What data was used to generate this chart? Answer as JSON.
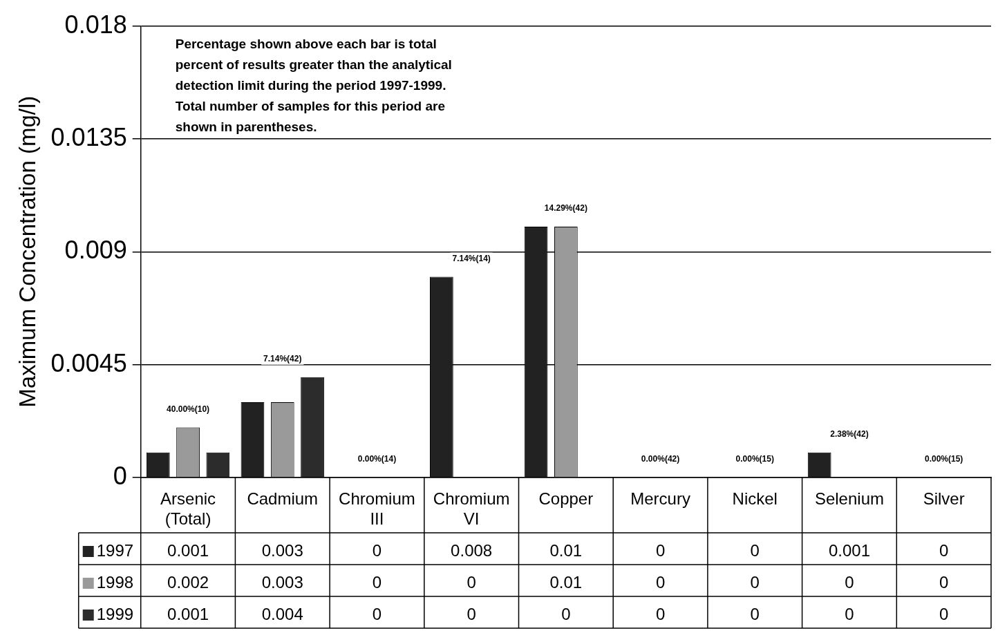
{
  "chart_data": {
    "type": "bar",
    "ylabel": "Maximum Concentration (mg/l)",
    "categories": [
      "Arsenic (Total)",
      "Cadmium",
      "Chromium III",
      "Chromium VI",
      "Copper",
      "Mercury",
      "Nickel",
      "Selenium",
      "Silver"
    ],
    "series": [
      {
        "name": "1997",
        "color": "#222222",
        "values": [
          0.001,
          0.003,
          0,
          0.008,
          0.01,
          0,
          0,
          0.001,
          0
        ]
      },
      {
        "name": "1998",
        "color": "#9a9a9a",
        "values": [
          0.002,
          0.003,
          0,
          0,
          0.01,
          0,
          0,
          0,
          0
        ]
      },
      {
        "name": "1999",
        "color": "#2c2c2c",
        "values": [
          0.001,
          0.004,
          0,
          0,
          0,
          0,
          0,
          0,
          0
        ]
      }
    ],
    "ylim": [
      0,
      0.018
    ],
    "yticks": [
      0,
      0.0045,
      0.009,
      0.0135,
      0.018
    ],
    "grid": "y",
    "legend": "bottom left",
    "data_labels": true,
    "annotations": [
      "Percentage shown above each bar is total percent of results greater than the analytical detection limit during the period 1997-1999. Total number of samples for this period are shown in parentheses.",
      "40.00%(10)",
      "7.14%(42)",
      "0.00%(14)",
      "7.14%(14)",
      "14.29%(42)",
      "0.00%(42)",
      "0.00%(15)",
      "2.38%(42)",
      "0.00%(15)"
    ]
  }
}
